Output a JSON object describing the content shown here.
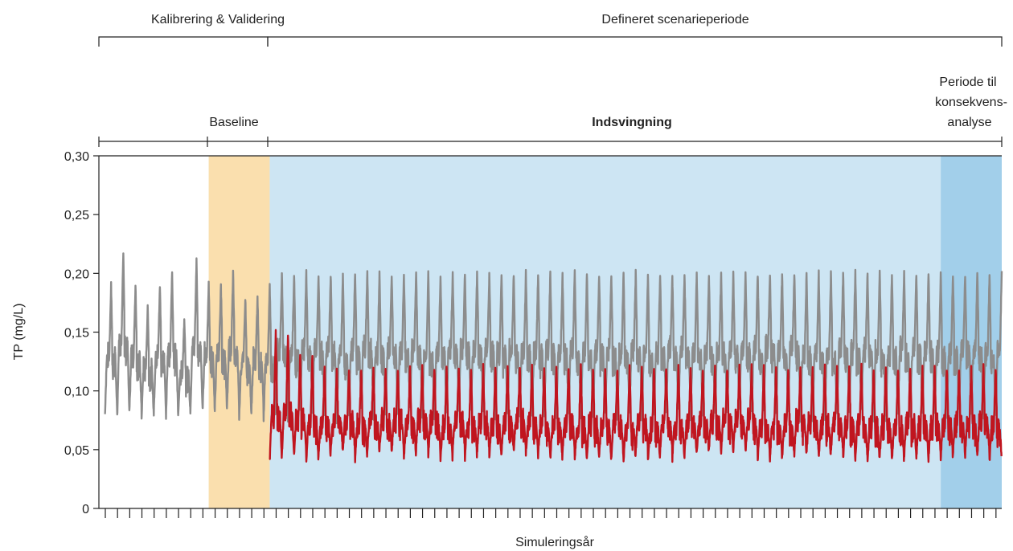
{
  "header": {
    "period_calibration": "Kalibrering & Validering",
    "period_scenario": "Defineret scenarieperiode",
    "baseline": "Baseline",
    "indsvingning": "Indsvingning",
    "consequence_line1": "Periode til",
    "consequence_line2": "konsekvens-",
    "consequence_line3": "analyse"
  },
  "chart_data": {
    "type": "line",
    "title": "",
    "xlabel": "Simuleringsår",
    "ylabel": "TP (mg/L)",
    "ylim": [
      0,
      0.3
    ],
    "yticks": [
      "0",
      "0,05",
      "0,10",
      "0,15",
      "0,20",
      "0,25",
      "0,30"
    ],
    "xlim": [
      0,
      74
    ],
    "x_tick_count": 74,
    "x_tick_labels_shown": false,
    "grid": false,
    "colors": {
      "grey_series": "#8c8c8c",
      "red_series": "#c0151f",
      "baseline_band": "#fadfae",
      "indsvingning_band": "#cde5f3",
      "consequence_band": "#a2cfea"
    },
    "bands": [
      {
        "name": "Baseline",
        "x_start": 9,
        "x_end": 14,
        "color": "#fadfae"
      },
      {
        "name": "Indsvingning",
        "x_start": 14,
        "x_end": 69,
        "color": "#cde5f3"
      },
      {
        "name": "Periode til konsekvensanalyse",
        "x_start": 69,
        "x_end": 74,
        "color": "#a2cfea"
      }
    ],
    "series": [
      {
        "color": "#8c8c8c",
        "x_start": 0.5,
        "x_end": 74,
        "annual_peaks": [
          0.19,
          0.22,
          0.19,
          0.17,
          0.19,
          0.2,
          0.16,
          0.21,
          0.19,
          0.19,
          0.2,
          0.18,
          0.18,
          0.19,
          0.2,
          0.2,
          0.2,
          0.2,
          0.2,
          0.2,
          0.2,
          0.2,
          0.2,
          0.2,
          0.2,
          0.2,
          0.2,
          0.2,
          0.2,
          0.2,
          0.2,
          0.2,
          0.2,
          0.2,
          0.2,
          0.2,
          0.2,
          0.2,
          0.2,
          0.2,
          0.2,
          0.2,
          0.2,
          0.2,
          0.2,
          0.2,
          0.2,
          0.2,
          0.2,
          0.2,
          0.2,
          0.2,
          0.2,
          0.2,
          0.2,
          0.2,
          0.2,
          0.2,
          0.2,
          0.2,
          0.2,
          0.2,
          0.2,
          0.2,
          0.2,
          0.2,
          0.2,
          0.2,
          0.2,
          0.2,
          0.2,
          0.2,
          0.2,
          0.2
        ],
        "annual_min": 0.08
      },
      {
        "color": "#c0151f",
        "x_start": 14,
        "x_end": 74,
        "annual_peaks": [
          0.15,
          0.15,
          0.13,
          0.13,
          0.12,
          0.12,
          0.12,
          0.12,
          0.12,
          0.12,
          0.12,
          0.12,
          0.12,
          0.12,
          0.12,
          0.12,
          0.12,
          0.12,
          0.12,
          0.12,
          0.12,
          0.12,
          0.12,
          0.12,
          0.12,
          0.12,
          0.12,
          0.12,
          0.12,
          0.12,
          0.12,
          0.12,
          0.12,
          0.12,
          0.12,
          0.12,
          0.12,
          0.12,
          0.12,
          0.12,
          0.12,
          0.12,
          0.12,
          0.12,
          0.12,
          0.12,
          0.12,
          0.12,
          0.12,
          0.12,
          0.12,
          0.12,
          0.12,
          0.12,
          0.12,
          0.12,
          0.12,
          0.12,
          0.12,
          0.12
        ],
        "annual_min": 0.045
      }
    ]
  }
}
